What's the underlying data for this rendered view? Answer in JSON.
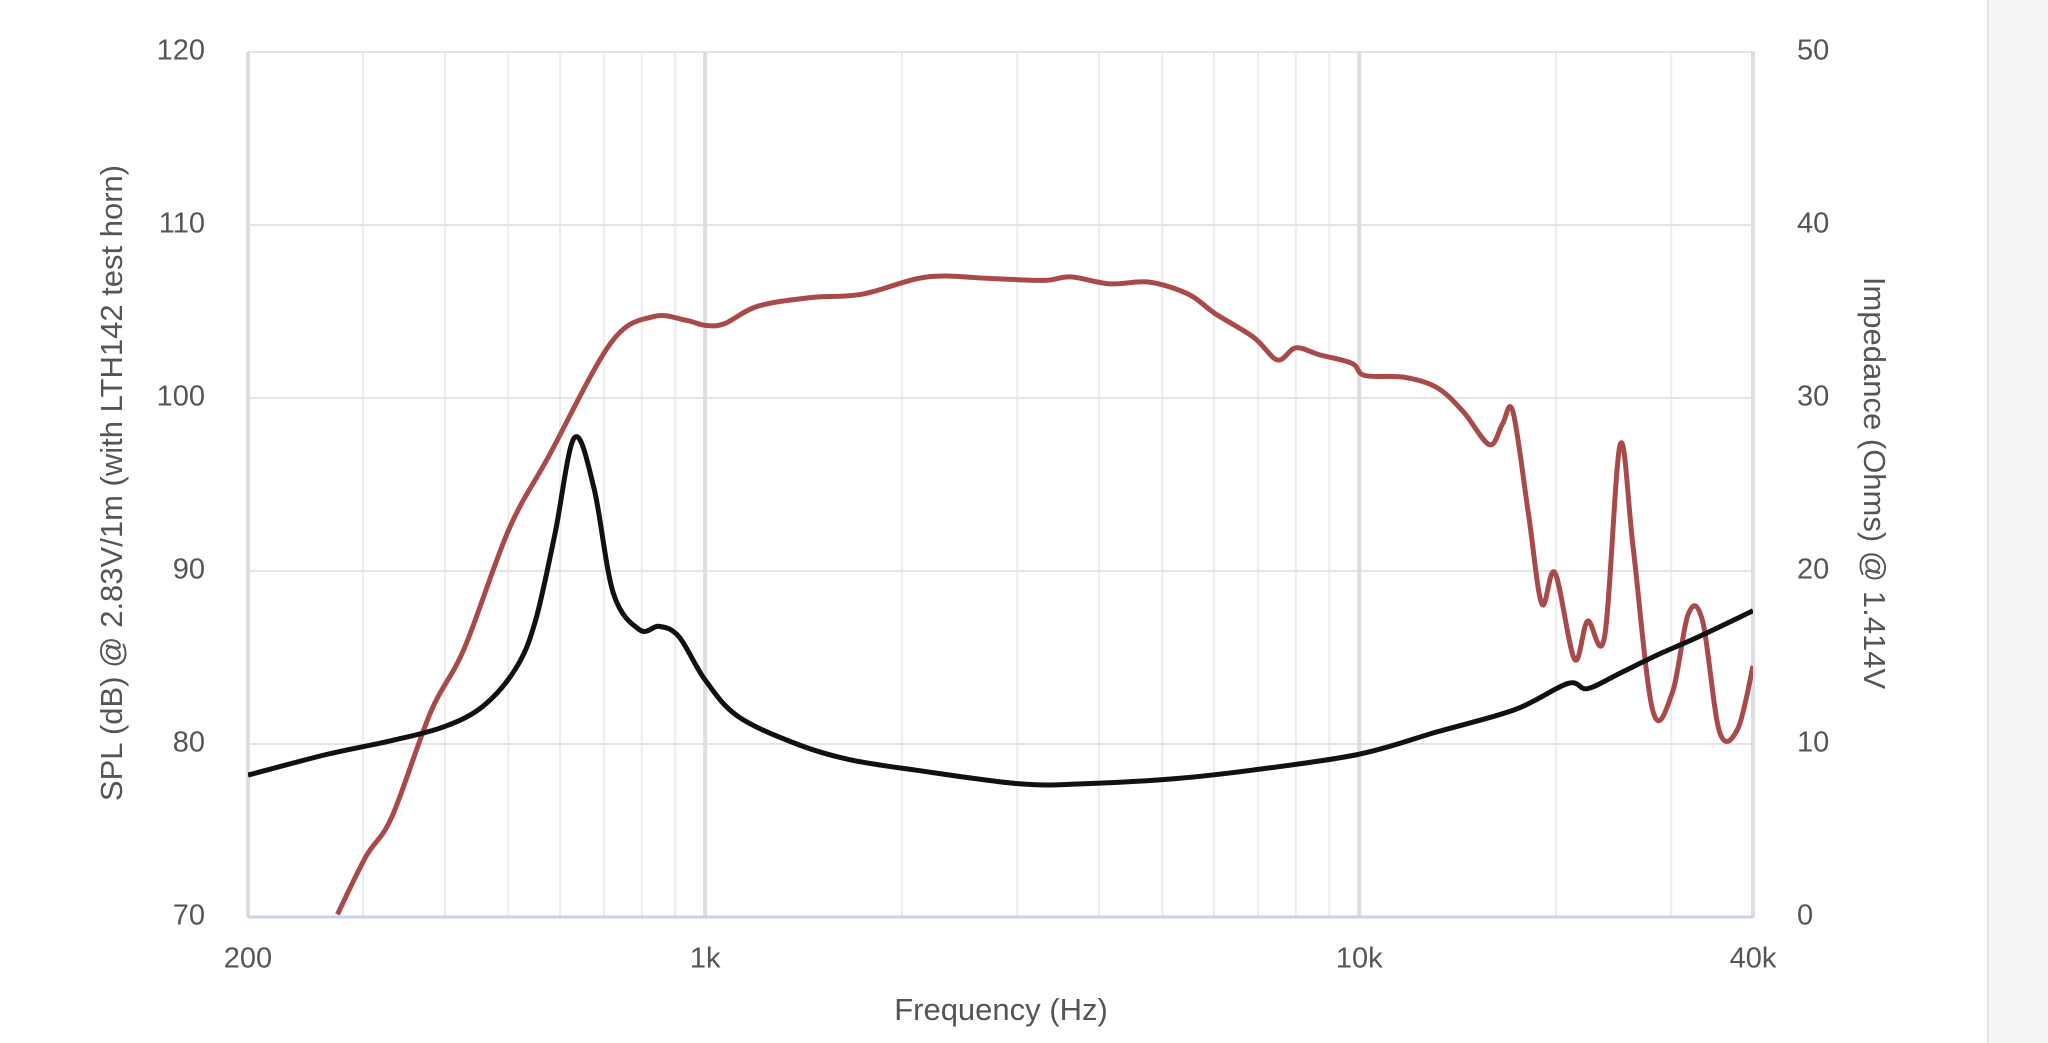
{
  "chart_data": {
    "type": "line",
    "xlabel": "Frequency (Hz)",
    "ylabel": "SPL (dB) @ 2.83V/1m (with LTH142 test horn)",
    "y2label": "Impedance (Ohms) @ 1.414V",
    "xscale": "log",
    "xlim": [
      200,
      40000
    ],
    "xticks": [
      200,
      {
        "value": 1000,
        "label": "1k"
      },
      {
        "value": 10000,
        "label": "10k"
      },
      {
        "value": 40000,
        "label": "40k"
      }
    ],
    "xminor": [
      300,
      400,
      500,
      600,
      700,
      800,
      900,
      2000,
      3000,
      4000,
      5000,
      6000,
      7000,
      8000,
      9000,
      20000,
      30000
    ],
    "ylim": [
      70,
      120
    ],
    "yticks": [
      70,
      80,
      90,
      100,
      110,
      120
    ],
    "y2lim": [
      0,
      50
    ],
    "y2ticks": [
      0,
      10,
      20,
      30,
      40,
      50
    ],
    "grid": true,
    "series": [
      {
        "name": "SPL",
        "color": "#a94a4a",
        "x": [
          274,
          303,
          332,
          381,
          428,
          501,
          576,
          718,
          832,
          933,
          1000,
          1071,
          1202,
          1445,
          1738,
          2188,
          2754,
          3304,
          3622,
          4158,
          4775,
          5483,
          6010,
          6900,
          7500,
          8000,
          8690,
          9750,
          10200,
          11720,
          13150,
          14430,
          15820,
          16560,
          17180,
          18160,
          19020,
          19920,
          21340,
          22340,
          23720,
          25060,
          26240,
          28120,
          30130,
          31840,
          33500,
          35560,
          37930,
          40000
        ],
        "values": [
          70.15,
          73.5,
          75.8,
          81.9,
          85.5,
          92.4,
          96.6,
          103.2,
          104.7,
          104.5,
          104.2,
          104.3,
          105.3,
          105.8,
          106.0,
          107.0,
          106.9,
          106.8,
          107.0,
          106.6,
          106.7,
          106.0,
          104.9,
          103.5,
          102.2,
          102.9,
          102.5,
          102.0,
          101.3,
          101.2,
          100.6,
          99.2,
          97.3,
          98.5,
          99.2,
          93.2,
          88.1,
          89.9,
          84.9,
          87.1,
          86.2,
          97.3,
          91.3,
          81.9,
          83.0,
          87.5,
          87.1,
          80.7,
          80.9,
          84.5
        ]
      },
      {
        "name": "Impedance",
        "color": "#111111",
        "axis": "y2",
        "x": [
          200,
          264,
          332,
          399,
          458,
          514,
          550,
          589,
          631,
          676,
          724,
          794,
          851,
          912,
          1000,
          1122,
          1380,
          1660,
          2090,
          3020,
          3800,
          5240,
          6900,
          9970,
          13150,
          17340,
          20850,
          22340,
          25060,
          28770,
          33040,
          40000
        ],
        "values": [
          8.2,
          9.4,
          10.2,
          11.0,
          12.2,
          14.4,
          17.1,
          22.1,
          27.7,
          24.8,
          18.7,
          16.6,
          16.8,
          16.2,
          13.7,
          11.6,
          10.0,
          9.1,
          8.5,
          7.7,
          7.7,
          8.0,
          8.5,
          9.4,
          10.7,
          12.0,
          13.5,
          13.2,
          14.1,
          15.2,
          16.2,
          17.7
        ]
      }
    ]
  }
}
